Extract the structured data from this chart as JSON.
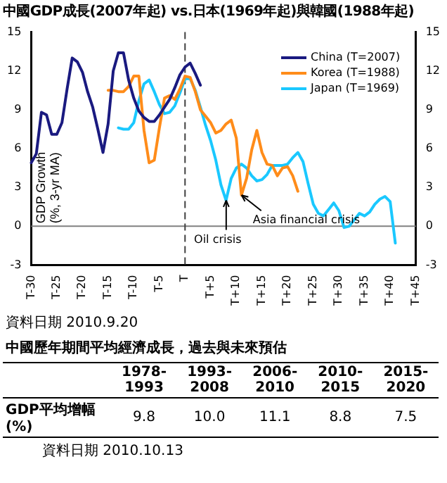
{
  "chart_data": [
    {
      "type": "line",
      "title": "中國GDP成長(2007年起) vs.日本(1969年起)與韓國(1988年起)",
      "ylabel": "GDP Growth (%, 3-yr MA)",
      "categories": [
        "T-30",
        null,
        null,
        null,
        null,
        "T-25",
        null,
        null,
        null,
        null,
        "T-20",
        null,
        null,
        null,
        null,
        "T-15",
        null,
        null,
        null,
        null,
        "T-10",
        null,
        null,
        null,
        null,
        "T-5",
        null,
        null,
        null,
        null,
        "T",
        null,
        null,
        null,
        null,
        "T+5",
        null,
        null,
        null,
        null,
        "T+10",
        null,
        null,
        null,
        null,
        "T+15",
        null,
        null,
        null,
        null,
        "T+20",
        null,
        null,
        null,
        null,
        "T+25",
        null,
        null,
        null,
        null,
        "T+30",
        null,
        null,
        null,
        null,
        "T+35",
        null,
        null,
        null,
        null,
        "T+40",
        null,
        null,
        null,
        null,
        "T+45"
      ],
      "ylim": [
        -3,
        15
      ],
      "yticks": [
        -3,
        0,
        3,
        6,
        9,
        12,
        15
      ],
      "y2lim": [
        -3,
        15
      ],
      "y2ticks": [
        -3,
        0,
        3,
        6,
        9,
        12,
        15
      ],
      "legend": "top right",
      "marker": "none",
      "line_style": "solid",
      "series": [
        {
          "name": "China (T=2007)",
          "color": "#1a1a80",
          "values": [
            4.9,
            5.6,
            8.8,
            8.6,
            7.1,
            7.1,
            8.0,
            10.6,
            13.0,
            12.7,
            11.9,
            10.4,
            9.2,
            7.5,
            5.7,
            7.9,
            12.0,
            13.4,
            13.4,
            11.3,
            9.9,
            8.9,
            8.4,
            8.1,
            8.1,
            8.6,
            9.2,
            9.8,
            10.7,
            11.7,
            12.3,
            12.6,
            11.8,
            10.9,
            null,
            null,
            null,
            null,
            null,
            null,
            null,
            null,
            null,
            null,
            null,
            null,
            null,
            null,
            null,
            null,
            null,
            null,
            null,
            null,
            null,
            null,
            null,
            null,
            null,
            null,
            null,
            null,
            null,
            null,
            null,
            null,
            null,
            null,
            null,
            null,
            null,
            null,
            null,
            null,
            null,
            null
          ]
        },
        {
          "name": "Korea (T=1988)",
          "color": "#ff8c1a",
          "values": [
            null,
            null,
            null,
            null,
            null,
            null,
            null,
            null,
            null,
            null,
            null,
            null,
            null,
            null,
            null,
            10.5,
            10.5,
            10.4,
            10.4,
            10.8,
            11.6,
            11.6,
            7.4,
            4.9,
            5.1,
            7.6,
            9.9,
            10.1,
            9.8,
            10.6,
            11.6,
            11.5,
            10.4,
            9.0,
            8.5,
            8.0,
            7.2,
            7.4,
            7.9,
            8.2,
            6.8,
            2.4,
            3.7,
            5.9,
            7.4,
            5.7,
            4.8,
            4.7,
            3.9,
            4.5,
            4.6,
            3.9,
            2.7,
            null,
            null,
            null,
            null,
            null,
            null,
            null,
            null,
            null,
            null,
            null,
            null,
            null,
            null,
            null,
            null,
            null,
            null,
            null,
            null,
            null,
            null,
            null
          ]
        },
        {
          "name": "Japan (T=1969)",
          "color": "#1ac8ff",
          "values": [
            null,
            null,
            null,
            null,
            null,
            null,
            null,
            null,
            null,
            null,
            null,
            null,
            null,
            null,
            null,
            null,
            null,
            7.6,
            7.5,
            7.5,
            8.0,
            9.7,
            11.0,
            11.3,
            10.4,
            9.4,
            8.7,
            8.8,
            9.3,
            10.3,
            11.4,
            11.4,
            10.5,
            9.2,
            7.8,
            6.6,
            5.1,
            3.2,
            2.0,
            3.7,
            4.5,
            4.8,
            4.5,
            3.9,
            3.5,
            3.6,
            4.0,
            4.7,
            4.7,
            4.7,
            4.8,
            5.3,
            5.7,
            5.0,
            3.3,
            1.7,
            1.0,
            0.8,
            1.3,
            1.8,
            1.2,
            -0.1,
            0.0,
            0.5,
            1.0,
            0.8,
            1.1,
            1.7,
            2.1,
            2.3,
            1.9,
            -1.3,
            null,
            null,
            null,
            null
          ]
        }
      ],
      "ref_lines": [
        {
          "axis": "y",
          "value": 0,
          "color": "#808080",
          "line_style": "solid"
        },
        {
          "axis": "x",
          "value": "T",
          "color": "#404040",
          "line_style": "dashed"
        }
      ],
      "annotations": [
        {
          "text": "Oil crisis",
          "y": 2.0
        },
        {
          "text": "Asia financial crisis",
          "y": 2.4
        },
        "資料日期 2010.9.20"
      ]
    },
    {
      "type": "other",
      "title": "中國歷年期間平均經濟成長，過去與未來預估",
      "categories": [
        "1978-1993",
        "1993-2008",
        "2006-2010",
        "2010-2015",
        "2015-2020"
      ],
      "ylabel": "GDP平均增幅 (%)",
      "value_labels": [
        "9.8",
        "10.0",
        "11.1",
        "8.8",
        "7.5"
      ],
      "annotations": [
        "資料日期 2010.10.13"
      ]
    }
  ]
}
